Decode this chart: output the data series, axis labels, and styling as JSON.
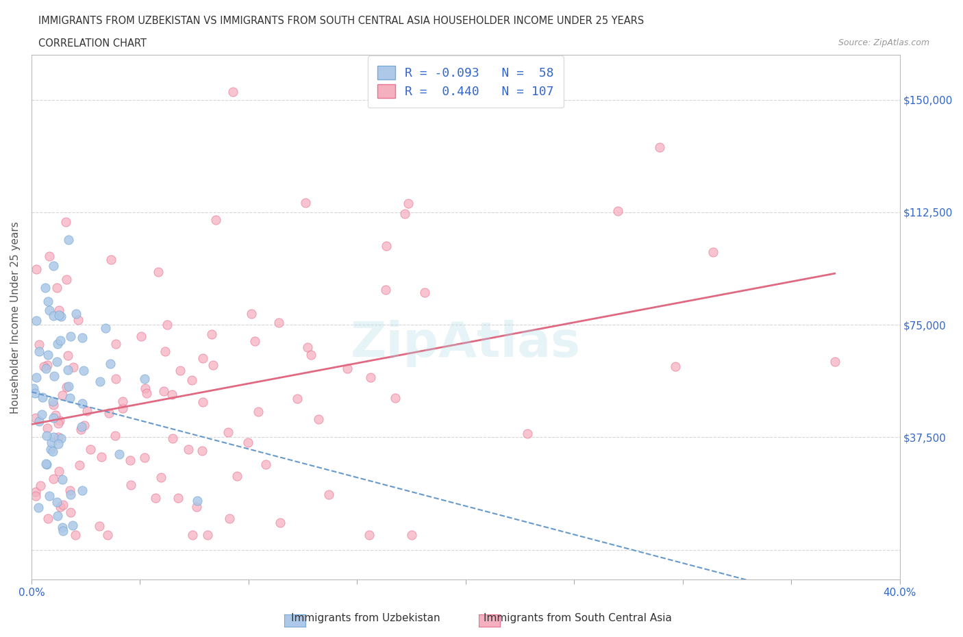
{
  "title_line1": "IMMIGRANTS FROM UZBEKISTAN VS IMMIGRANTS FROM SOUTH CENTRAL ASIA HOUSEHOLDER INCOME UNDER 25 YEARS",
  "title_line2": "CORRELATION CHART",
  "source_text": "Source: ZipAtlas.com",
  "ylabel": "Householder Income Under 25 years",
  "xlim": [
    0.0,
    0.4
  ],
  "ylim": [
    -10000,
    165000
  ],
  "xticks": [
    0.0,
    0.05,
    0.1,
    0.15,
    0.2,
    0.25,
    0.3,
    0.35,
    0.4
  ],
  "ytick_positions": [
    0,
    37500,
    75000,
    112500,
    150000
  ],
  "ytick_labels": [
    "",
    "$37,500",
    "$75,000",
    "$112,500",
    "$150,000"
  ],
  "watermark": "ZipAtlas",
  "blue_color": "#adc8e8",
  "blue_edge": "#7aaad4",
  "pink_color": "#f5b0c0",
  "pink_edge": "#e87090",
  "blue_line_color": "#6699cc",
  "pink_line_color": "#e06880",
  "legend_R_blue": "-0.093",
  "legend_N_blue": "58",
  "legend_R_pink": "0.440",
  "legend_N_pink": "107",
  "blue_label": "Immigrants from Uzbekistan",
  "pink_label": "Immigrants from South Central Asia",
  "grid_color": "#cccccc",
  "bg_color": "#ffffff",
  "title_color": "#333333",
  "label_color": "#555555",
  "tick_color": "#3366cc"
}
